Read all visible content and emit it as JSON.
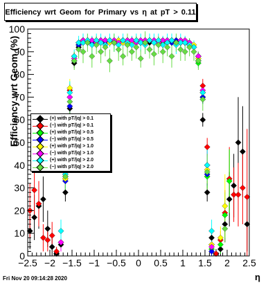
{
  "title": "Efficiency wrt Geom for Primary vs   η at pT > 0.11",
  "timestamp": "Fri Nov 20 09:14:28 2020",
  "chart_data": {
    "type": "scatter",
    "xlabel": "η",
    "ylabel": "Efficiency wrt Geom (%)",
    "xlim": [
      -2.5,
      2.5
    ],
    "ylim": [
      0,
      100
    ],
    "x_ticks": [
      "−2.5",
      "−2",
      "−1.5",
      "−1",
      "−0.5",
      "0",
      "0.5",
      "1",
      "1.5",
      "2",
      "2.5"
    ],
    "y_ticks": [
      "0",
      "10",
      "20",
      "30",
      "40",
      "50",
      "60",
      "70",
      "80",
      "90",
      "100"
    ],
    "grid": false,
    "legend_placement": "middle-left",
    "x": [
      -2.45,
      -2.35,
      -2.25,
      -2.15,
      -2.05,
      -1.95,
      -1.85,
      -1.75,
      -1.65,
      -1.55,
      -1.45,
      -1.35,
      -1.25,
      -1.15,
      -1.05,
      -0.95,
      -0.85,
      -0.75,
      -0.65,
      -0.55,
      -0.45,
      -0.35,
      -0.25,
      -0.15,
      -0.05,
      0.05,
      0.15,
      0.25,
      0.35,
      0.45,
      0.55,
      0.65,
      0.75,
      0.85,
      0.95,
      1.05,
      1.15,
      1.25,
      1.35,
      1.45,
      1.55,
      1.65,
      1.75,
      1.85,
      1.95,
      2.05,
      2.15,
      2.25,
      2.35,
      2.45
    ],
    "series": [
      {
        "name": "(+) with pT/|q| > 0.1",
        "color": "#000000",
        "values": [
          11,
          17,
          22,
          25,
          12,
          4,
          1,
          5,
          28,
          65,
          85,
          92,
          94,
          94,
          95,
          94,
          95,
          94,
          94,
          95,
          94,
          95,
          94,
          95,
          94,
          94,
          95,
          94,
          95,
          94,
          95,
          94,
          94,
          95,
          94,
          94,
          93,
          92,
          88,
          60,
          28,
          8,
          1,
          3,
          14,
          25,
          31,
          50,
          46,
          14
        ],
        "errors": [
          8,
          10,
          10,
          10,
          8,
          5,
          2,
          3,
          4,
          3,
          2,
          1,
          1,
          1,
          1,
          1,
          1,
          1,
          1,
          1,
          1,
          1,
          1,
          1,
          1,
          1,
          1,
          1,
          1,
          1,
          1,
          1,
          1,
          1,
          1,
          1,
          1,
          1,
          2,
          3,
          4,
          4,
          2,
          4,
          8,
          12,
          14,
          20,
          20,
          12
        ]
      },
      {
        "name": "(−) with pT/|q| > 0.1",
        "color": "#ff0000",
        "values": [
          20,
          29,
          23,
          8,
          7,
          9,
          2,
          6,
          34,
          73,
          88,
          94,
          95,
          95,
          95,
          94,
          95,
          95,
          95,
          94,
          95,
          95,
          94,
          95,
          95,
          94,
          95,
          95,
          94,
          95,
          95,
          94,
          95,
          95,
          94,
          95,
          94,
          92,
          86,
          75,
          48,
          5,
          1,
          7,
          19,
          34,
          27,
          27,
          30,
          26
        ],
        "errors": [
          12,
          12,
          10,
          6,
          5,
          6,
          2,
          4,
          4,
          3,
          2,
          1,
          1,
          1,
          1,
          1,
          1,
          1,
          1,
          1,
          1,
          1,
          1,
          1,
          1,
          1,
          1,
          1,
          1,
          1,
          1,
          1,
          1,
          1,
          1,
          1,
          1,
          1,
          2,
          3,
          4,
          3,
          1,
          4,
          10,
          14,
          12,
          14,
          16,
          30
        ]
      },
      {
        "name": "(+) with pT/|q| > 0.5",
        "color": "#00ff00",
        "values": [
          0,
          0,
          0,
          0,
          0,
          0,
          0,
          0,
          35,
          70,
          86,
          93,
          95,
          94,
          94,
          95,
          94,
          95,
          94,
          94,
          95,
          94,
          95,
          94,
          95,
          94,
          94,
          95,
          94,
          95,
          94,
          95,
          94,
          94,
          95,
          94,
          93,
          92,
          85,
          70,
          35,
          3,
          0,
          5,
          18,
          33,
          0,
          0,
          0,
          0
        ],
        "errors": [
          0,
          0,
          0,
          0,
          0,
          0,
          0,
          0,
          5,
          3,
          2,
          1,
          1,
          1,
          1,
          1,
          1,
          1,
          1,
          1,
          1,
          1,
          1,
          1,
          1,
          1,
          1,
          1,
          1,
          1,
          1,
          1,
          1,
          1,
          1,
          1,
          1,
          1,
          2,
          3,
          5,
          3,
          0,
          4,
          10,
          14,
          0,
          0,
          0,
          0
        ]
      },
      {
        "name": "(−) with pT/|q| > 0.5",
        "color": "#0000ff",
        "values": [
          0,
          0,
          0,
          0,
          0,
          0,
          0,
          0,
          33,
          66,
          86,
          93,
          95,
          95,
          94,
          95,
          95,
          94,
          95,
          95,
          94,
          95,
          95,
          94,
          95,
          95,
          94,
          95,
          95,
          94,
          95,
          95,
          94,
          95,
          95,
          94,
          94,
          92,
          88,
          70,
          36,
          2,
          0,
          0,
          0,
          0,
          0,
          0,
          0,
          0
        ],
        "errors": [
          0,
          0,
          0,
          0,
          0,
          0,
          0,
          0,
          5,
          3,
          2,
          1,
          1,
          1,
          1,
          1,
          1,
          1,
          1,
          1,
          1,
          1,
          1,
          1,
          1,
          1,
          1,
          1,
          1,
          1,
          1,
          1,
          1,
          1,
          1,
          1,
          1,
          1,
          2,
          3,
          5,
          2,
          0,
          0,
          0,
          0,
          0,
          0,
          0,
          0
        ]
      },
      {
        "name": "(+) with pT/|q| > 1.0",
        "color": "#ffff00",
        "values": [
          0,
          0,
          0,
          0,
          0,
          0,
          0,
          0,
          34,
          74,
          88,
          94,
          95,
          94,
          95,
          95,
          94,
          95,
          94,
          95,
          95,
          94,
          95,
          94,
          95,
          95,
          94,
          95,
          94,
          95,
          95,
          94,
          95,
          94,
          95,
          95,
          93,
          93,
          87,
          72,
          38,
          5,
          0,
          8,
          22,
          0,
          0,
          0,
          0,
          0
        ],
        "errors": [
          0,
          0,
          0,
          0,
          0,
          0,
          0,
          0,
          6,
          4,
          2,
          1,
          1,
          1,
          1,
          1,
          1,
          1,
          1,
          1,
          1,
          1,
          1,
          1,
          1,
          1,
          1,
          1,
          1,
          1,
          1,
          1,
          1,
          1,
          1,
          1,
          1,
          1,
          2,
          3,
          6,
          4,
          0,
          5,
          14,
          0,
          0,
          0,
          0,
          0
        ]
      },
      {
        "name": "(−) with pT/|q| > 1.0",
        "color": "#ff00ff",
        "values": [
          0,
          0,
          0,
          0,
          0,
          0,
          0,
          6,
          36,
          70,
          87,
          94,
          95,
          95,
          95,
          94,
          95,
          95,
          95,
          95,
          94,
          95,
          95,
          95,
          94,
          95,
          95,
          95,
          95,
          94,
          95,
          95,
          95,
          94,
          95,
          95,
          94,
          92,
          88,
          73,
          40,
          4,
          0,
          0,
          0,
          0,
          0,
          0,
          0,
          0
        ],
        "errors": [
          0,
          0,
          0,
          0,
          0,
          0,
          0,
          4,
          6,
          4,
          2,
          1,
          1,
          1,
          1,
          1,
          1,
          1,
          1,
          1,
          1,
          1,
          1,
          1,
          1,
          1,
          1,
          1,
          1,
          1,
          1,
          1,
          1,
          1,
          1,
          1,
          1,
          1,
          2,
          3,
          6,
          3,
          0,
          0,
          0,
          0,
          0,
          0,
          0,
          0
        ]
      },
      {
        "name": "(+) with pT/|q| > 2.0",
        "color": "#00ffff",
        "values": [
          0,
          0,
          0,
          0,
          0,
          0,
          0,
          11,
          36,
          72,
          88,
          94,
          94,
          95,
          93,
          95,
          94,
          93,
          95,
          94,
          93,
          95,
          94,
          93,
          95,
          94,
          93,
          95,
          94,
          95,
          93,
          94,
          95,
          93,
          94,
          94,
          93,
          92,
          86,
          72,
          40,
          11,
          0,
          0,
          0,
          0,
          0,
          0,
          0,
          0
        ],
        "errors": [
          0,
          0,
          0,
          0,
          0,
          0,
          0,
          5,
          7,
          5,
          3,
          3,
          4,
          3,
          4,
          3,
          4,
          4,
          3,
          4,
          4,
          3,
          4,
          4,
          3,
          4,
          4,
          3,
          4,
          3,
          4,
          4,
          3,
          4,
          4,
          3,
          3,
          3,
          3,
          4,
          7,
          5,
          0,
          0,
          0,
          0,
          0,
          0,
          0,
          0
        ]
      },
      {
        "name": "(−) with pT/|q| > 2.0",
        "color": "#66dd44",
        "values": [
          0,
          0,
          0,
          0,
          0,
          0,
          0,
          0,
          35,
          68,
          86,
          91,
          90,
          94,
          88,
          93,
          90,
          92,
          86,
          94,
          91,
          88,
          93,
          90,
          92,
          87,
          94,
          91,
          89,
          93,
          90,
          92,
          88,
          94,
          91,
          90,
          92,
          90,
          86,
          69,
          37,
          0,
          0,
          0,
          12,
          0,
          0,
          0,
          0,
          0
        ],
        "errors": [
          0,
          0,
          0,
          0,
          0,
          0,
          0,
          0,
          8,
          6,
          4,
          4,
          5,
          4,
          5,
          4,
          5,
          4,
          5,
          4,
          5,
          4,
          5,
          4,
          5,
          4,
          5,
          4,
          5,
          4,
          5,
          4,
          5,
          4,
          5,
          4,
          4,
          4,
          4,
          5,
          8,
          0,
          0,
          0,
          6,
          0,
          0,
          0,
          0,
          0
        ]
      }
    ]
  }
}
